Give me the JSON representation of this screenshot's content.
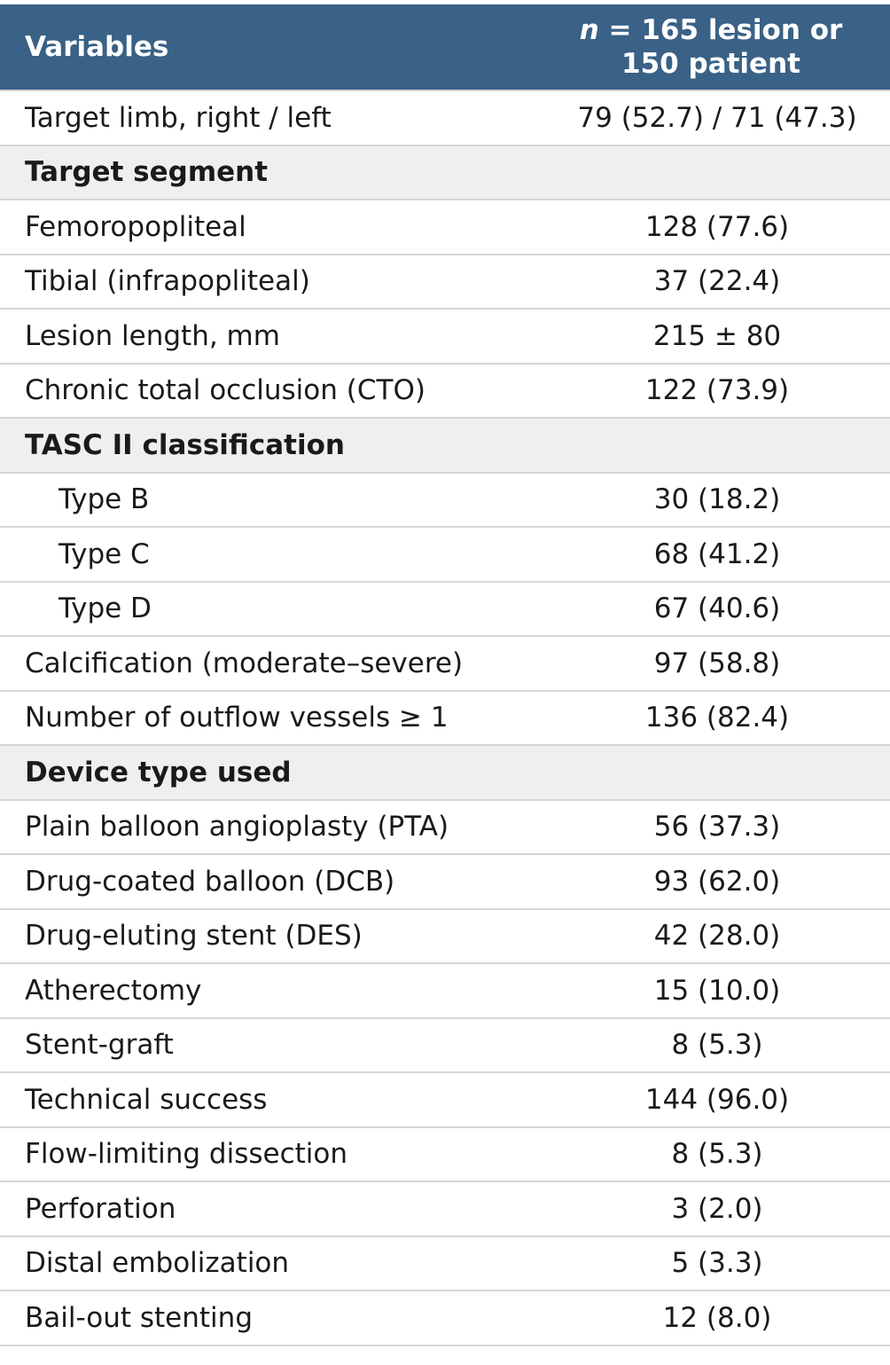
{
  "header": {
    "variables_label": "Variables",
    "n_italic": "n",
    "value_label_rest": " = 165 lesion or",
    "value_label_line2": "150 patient"
  },
  "rows": [
    {
      "label": "Target limb, right / left",
      "value": "79 (52.7) / 71 (47.3)",
      "type": "data"
    },
    {
      "label": "Target segment",
      "value": "",
      "type": "section"
    },
    {
      "label": "Femoropopliteal",
      "value": "128 (77.6)",
      "type": "data"
    },
    {
      "label": "Tibial (infrapopliteal)",
      "value": "37 (22.4)",
      "type": "data"
    },
    {
      "label": "Lesion length, mm",
      "value": "215 ± 80",
      "type": "data"
    },
    {
      "label": "Chronic total occlusion (CTO)",
      "value": "122 (73.9)",
      "type": "data"
    },
    {
      "label": "TASC II classification",
      "value": "",
      "type": "section"
    },
    {
      "label": "Type B",
      "value": "30 (18.2)",
      "type": "indent"
    },
    {
      "label": "Type C",
      "value": "68 (41.2)",
      "type": "indent"
    },
    {
      "label": "Type D",
      "value": "67 (40.6)",
      "type": "indent"
    },
    {
      "label": "Calcification (moderate–severe)",
      "value": "97 (58.8)",
      "type": "data"
    },
    {
      "label": "Number of outflow vessels ≥ 1",
      "value": "136 (82.4)",
      "type": "data"
    },
    {
      "label": "Device type used",
      "value": "",
      "type": "section"
    },
    {
      "label": "Plain balloon angioplasty (PTA)",
      "value": "56 (37.3)",
      "type": "data"
    },
    {
      "label": "Drug-coated balloon (DCB)",
      "value": "93 (62.0)",
      "type": "data"
    },
    {
      "label": "Drug-eluting stent (DES)",
      "value": "42 (28.0)",
      "type": "data"
    },
    {
      "label": "Atherectomy",
      "value": "15 (10.0)",
      "type": "data"
    },
    {
      "label": "Stent-graft",
      "value": "8 (5.3)",
      "type": "data"
    },
    {
      "label": "Technical success",
      "value": "144 (96.0)",
      "type": "data"
    },
    {
      "label": "Flow-limiting dissection",
      "value": "8 (5.3)",
      "type": "data"
    },
    {
      "label": "Perforation",
      "value": "3 (2.0)",
      "type": "data"
    },
    {
      "label": "Distal embolization",
      "value": "5 (3.3)",
      "type": "data"
    },
    {
      "label": "Bail-out stenting",
      "value": "12 (8.0)",
      "type": "data"
    }
  ]
}
